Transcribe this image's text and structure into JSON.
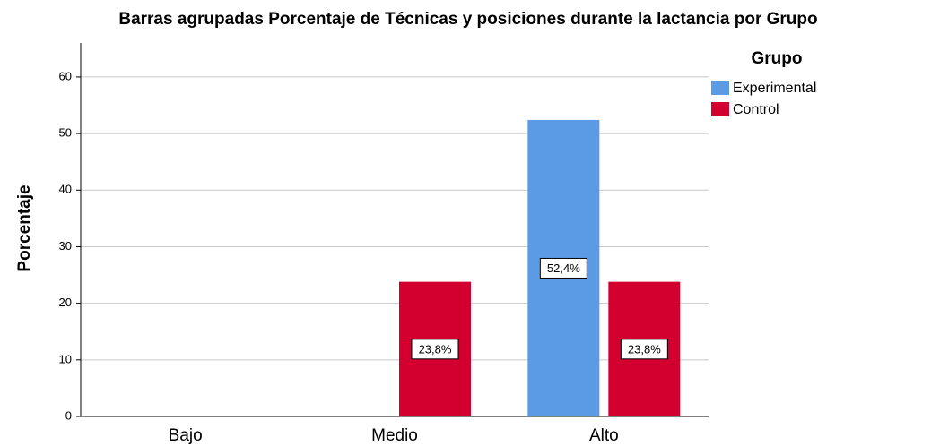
{
  "chart_data": {
    "type": "bar",
    "title": "Barras agrupadas Porcentaje de Técnicas y posiciones durante la lactancia por Grupo",
    "y_label": "Porcentaje",
    "legend_title": "Grupo",
    "legend_position": "right",
    "categories": [
      "Bajo",
      "Medio",
      "Alto"
    ],
    "series": [
      {
        "name": "Experimental",
        "color": "#5b9be6",
        "values": [
          null,
          null,
          52.4
        ],
        "value_labels": [
          null,
          null,
          "52,4%"
        ]
      },
      {
        "name": "Control",
        "color": "#d3002f",
        "values": [
          null,
          23.8,
          23.8
        ],
        "value_labels": [
          null,
          "23,8%",
          "23,8%"
        ]
      }
    ],
    "ylim": [
      0,
      66
    ],
    "yticks": [
      0,
      10,
      20,
      30,
      40,
      50,
      60
    ],
    "grid": true
  }
}
